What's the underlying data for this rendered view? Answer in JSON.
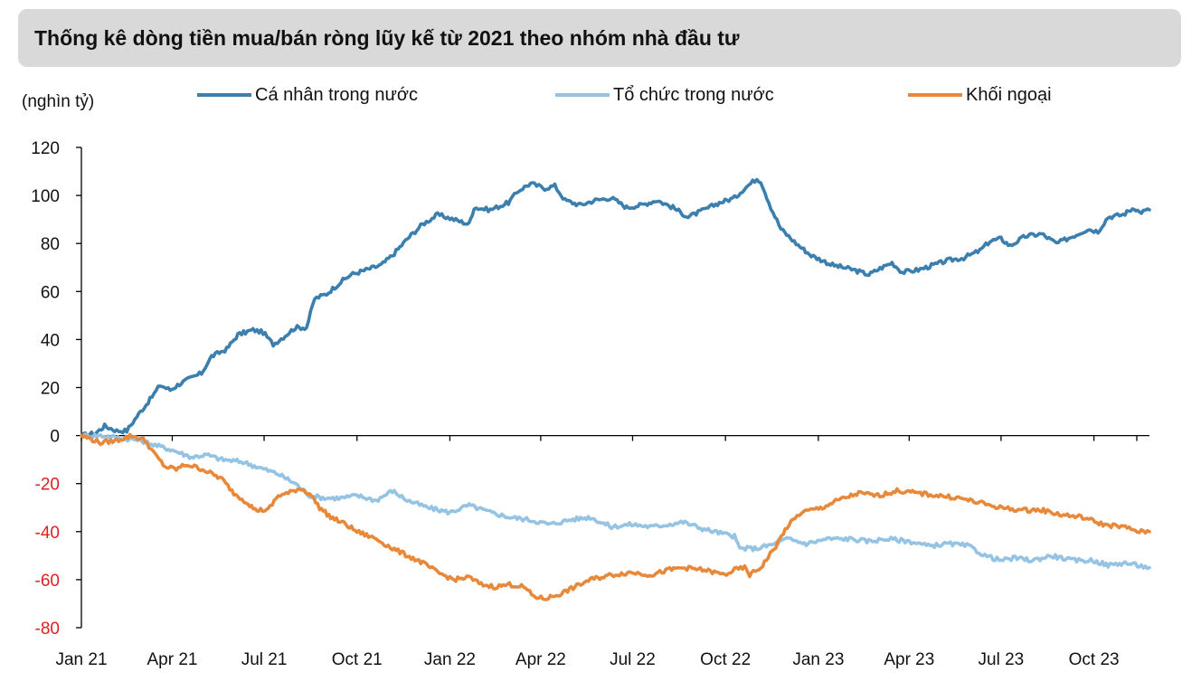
{
  "title": "Thống kê dòng tiền mua/bán ròng lũy kế từ 2021 theo nhóm nhà đầu tư",
  "unit_label": "(nghìn tỷ)",
  "colors": {
    "individual": "#3a7fad",
    "institution": "#95c3e3",
    "foreign": "#e8883a",
    "negative_tick": "#e02020",
    "axis": "#000000"
  },
  "chart_data": {
    "type": "line",
    "title": "Thống kê dòng tiền mua/bán ròng lũy kế từ 2021 theo nhóm nhà đầu tư",
    "ylabel": "(nghìn tỷ)",
    "xlabel": "",
    "ylim": [
      -80,
      120
    ],
    "yticks": [
      120,
      100,
      80,
      60,
      40,
      20,
      0,
      -20,
      -40,
      -60,
      -80
    ],
    "xlim": [
      "2021-01-01",
      "2023-11-25"
    ],
    "xticks": [
      {
        "date": "2021-01-01",
        "label": "Jan 21"
      },
      {
        "date": "2021-04-01",
        "label": "Apr 21"
      },
      {
        "date": "2021-07-01",
        "label": "Jul 21"
      },
      {
        "date": "2021-10-01",
        "label": "Oct 21"
      },
      {
        "date": "2022-01-01",
        "label": "Jan 22"
      },
      {
        "date": "2022-04-01",
        "label": "Apr 22"
      },
      {
        "date": "2022-07-01",
        "label": "Jul 22"
      },
      {
        "date": "2022-10-01",
        "label": "Oct 22"
      },
      {
        "date": "2023-01-01",
        "label": "Jan 23"
      },
      {
        "date": "2023-04-01",
        "label": "Apr 23"
      },
      {
        "date": "2023-07-01",
        "label": "Jul 23"
      },
      {
        "date": "2023-10-01",
        "label": "Oct 23"
      }
    ],
    "grid": false,
    "legend_position": "top",
    "series": [
      {
        "name": "Cá nhân trong nước",
        "color": "#3a7fad",
        "points": [
          [
            "2021-01-01",
            0
          ],
          [
            "2021-01-15",
            1
          ],
          [
            "2021-01-24",
            4
          ],
          [
            "2021-02-05",
            2
          ],
          [
            "2021-02-15",
            2
          ],
          [
            "2021-02-25",
            8
          ],
          [
            "2021-03-10",
            15
          ],
          [
            "2021-03-20",
            21
          ],
          [
            "2021-03-30",
            19
          ],
          [
            "2021-04-10",
            22
          ],
          [
            "2021-04-30",
            26
          ],
          [
            "2021-05-10",
            33
          ],
          [
            "2021-05-25",
            36
          ],
          [
            "2021-06-05",
            42
          ],
          [
            "2021-06-20",
            44
          ],
          [
            "2021-06-30",
            43
          ],
          [
            "2021-07-10",
            38
          ],
          [
            "2021-07-20",
            41
          ],
          [
            "2021-08-01",
            45
          ],
          [
            "2021-08-12",
            45
          ],
          [
            "2021-08-20",
            57
          ],
          [
            "2021-09-01",
            59
          ],
          [
            "2021-09-15",
            64
          ],
          [
            "2021-09-25",
            67
          ],
          [
            "2021-10-10",
            69
          ],
          [
            "2021-10-25",
            71
          ],
          [
            "2021-11-05",
            75
          ],
          [
            "2021-11-20",
            82
          ],
          [
            "2021-12-05",
            88
          ],
          [
            "2021-12-20",
            92
          ],
          [
            "2022-01-05",
            90
          ],
          [
            "2022-01-20",
            88
          ],
          [
            "2022-01-25",
            95
          ],
          [
            "2022-02-10",
            94
          ],
          [
            "2022-02-28",
            97
          ],
          [
            "2022-03-10",
            102
          ],
          [
            "2022-03-22",
            105
          ],
          [
            "2022-04-05",
            103
          ],
          [
            "2022-04-15",
            104
          ],
          [
            "2022-04-25",
            98
          ],
          [
            "2022-05-10",
            96
          ],
          [
            "2022-05-25",
            98
          ],
          [
            "2022-06-10",
            99
          ],
          [
            "2022-06-25",
            95
          ],
          [
            "2022-07-10",
            96
          ],
          [
            "2022-07-25",
            98
          ],
          [
            "2022-08-10",
            95
          ],
          [
            "2022-08-25",
            91
          ],
          [
            "2022-09-10",
            94
          ],
          [
            "2022-09-25",
            97
          ],
          [
            "2022-10-10",
            99
          ],
          [
            "2022-10-20",
            103
          ],
          [
            "2022-11-01",
            107
          ],
          [
            "2022-11-05",
            106
          ],
          [
            "2022-11-15",
            95
          ],
          [
            "2022-11-25",
            86
          ],
          [
            "2022-12-10",
            80
          ],
          [
            "2022-12-25",
            75
          ],
          [
            "2023-01-15",
            71
          ],
          [
            "2023-02-05",
            69
          ],
          [
            "2023-02-20",
            67
          ],
          [
            "2023-03-05",
            70
          ],
          [
            "2023-03-15",
            72
          ],
          [
            "2023-03-25",
            68
          ],
          [
            "2023-04-10",
            69
          ],
          [
            "2023-04-25",
            71
          ],
          [
            "2023-05-10",
            73
          ],
          [
            "2023-05-25",
            74
          ],
          [
            "2023-06-10",
            77
          ],
          [
            "2023-06-20",
            81
          ],
          [
            "2023-07-01",
            82
          ],
          [
            "2023-07-10",
            79
          ],
          [
            "2023-07-25",
            83
          ],
          [
            "2023-08-10",
            84
          ],
          [
            "2023-08-25",
            80
          ],
          [
            "2023-09-10",
            83
          ],
          [
            "2023-09-25",
            86
          ],
          [
            "2023-10-05",
            85
          ],
          [
            "2023-10-15",
            91
          ],
          [
            "2023-10-30",
            92
          ],
          [
            "2023-11-10",
            95
          ],
          [
            "2023-11-15",
            93
          ],
          [
            "2023-11-25",
            94
          ]
        ]
      },
      {
        "name": "Tổ chức trong nước",
        "color": "#95c3e3",
        "points": [
          [
            "2021-01-01",
            0
          ],
          [
            "2021-01-20",
            0
          ],
          [
            "2021-02-10",
            -1
          ],
          [
            "2021-02-28",
            -2
          ],
          [
            "2021-03-15",
            -4
          ],
          [
            "2021-04-01",
            -6
          ],
          [
            "2021-04-20",
            -9
          ],
          [
            "2021-05-05",
            -8
          ],
          [
            "2021-05-20",
            -10
          ],
          [
            "2021-06-10",
            -11
          ],
          [
            "2021-07-01",
            -14
          ],
          [
            "2021-07-15",
            -16
          ],
          [
            "2021-08-01",
            -20
          ],
          [
            "2021-08-15",
            -25
          ],
          [
            "2021-08-30",
            -26
          ],
          [
            "2021-09-15",
            -26
          ],
          [
            "2021-10-01",
            -25
          ],
          [
            "2021-10-20",
            -27
          ],
          [
            "2021-11-05",
            -23
          ],
          [
            "2021-11-20",
            -27
          ],
          [
            "2021-12-10",
            -30
          ],
          [
            "2022-01-01",
            -32
          ],
          [
            "2022-01-20",
            -29
          ],
          [
            "2022-02-10",
            -32
          ],
          [
            "2022-03-01",
            -34
          ],
          [
            "2022-03-20",
            -35
          ],
          [
            "2022-04-10",
            -37
          ],
          [
            "2022-05-01",
            -35
          ],
          [
            "2022-05-20",
            -34
          ],
          [
            "2022-06-10",
            -38
          ],
          [
            "2022-06-30",
            -37
          ],
          [
            "2022-07-20",
            -38
          ],
          [
            "2022-08-05",
            -37
          ],
          [
            "2022-08-20",
            -36
          ],
          [
            "2022-09-10",
            -39
          ],
          [
            "2022-09-30",
            -41
          ],
          [
            "2022-10-10",
            -42
          ],
          [
            "2022-10-15",
            -47
          ],
          [
            "2022-11-01",
            -47
          ],
          [
            "2022-11-20",
            -45
          ],
          [
            "2022-12-01",
            -43
          ],
          [
            "2022-12-20",
            -45
          ],
          [
            "2023-01-10",
            -43
          ],
          [
            "2023-02-01",
            -43
          ],
          [
            "2023-02-20",
            -44
          ],
          [
            "2023-03-10",
            -43
          ],
          [
            "2023-04-01",
            -44
          ],
          [
            "2023-04-20",
            -46
          ],
          [
            "2023-05-10",
            -45
          ],
          [
            "2023-05-30",
            -46
          ],
          [
            "2023-06-15",
            -50
          ],
          [
            "2023-07-01",
            -52
          ],
          [
            "2023-07-15",
            -51
          ],
          [
            "2023-08-01",
            -52
          ],
          [
            "2023-08-20",
            -50
          ],
          [
            "2023-09-10",
            -52
          ],
          [
            "2023-09-30",
            -52
          ],
          [
            "2023-10-15",
            -54
          ],
          [
            "2023-11-01",
            -53
          ],
          [
            "2023-11-25",
            -55
          ]
        ]
      },
      {
        "name": "Khối ngoại",
        "color": "#e8883a",
        "points": [
          [
            "2021-01-01",
            0
          ],
          [
            "2021-01-20",
            -3
          ],
          [
            "2021-02-05",
            -2
          ],
          [
            "2021-02-20",
            0
          ],
          [
            "2021-03-05",
            -2
          ],
          [
            "2021-03-15",
            -8
          ],
          [
            "2021-03-25",
            -13
          ],
          [
            "2021-04-05",
            -14
          ],
          [
            "2021-04-15",
            -12
          ],
          [
            "2021-05-01",
            -14
          ],
          [
            "2021-05-20",
            -18
          ],
          [
            "2021-06-01",
            -24
          ],
          [
            "2021-06-15",
            -28
          ],
          [
            "2021-06-22",
            -31
          ],
          [
            "2021-07-05",
            -31
          ],
          [
            "2021-07-15",
            -25
          ],
          [
            "2021-07-25",
            -24
          ],
          [
            "2021-08-05",
            -22
          ],
          [
            "2021-08-15",
            -24
          ],
          [
            "2021-08-25",
            -30
          ],
          [
            "2021-09-05",
            -34
          ],
          [
            "2021-09-20",
            -37
          ],
          [
            "2021-10-01",
            -40
          ],
          [
            "2021-10-20",
            -43
          ],
          [
            "2021-11-05",
            -47
          ],
          [
            "2021-11-20",
            -50
          ],
          [
            "2021-12-05",
            -53
          ],
          [
            "2021-12-20",
            -57
          ],
          [
            "2022-01-05",
            -60
          ],
          [
            "2022-01-20",
            -59
          ],
          [
            "2022-02-01",
            -62
          ],
          [
            "2022-02-15",
            -63
          ],
          [
            "2022-03-01",
            -62
          ],
          [
            "2022-03-15",
            -63
          ],
          [
            "2022-03-25",
            -67
          ],
          [
            "2022-04-05",
            -68
          ],
          [
            "2022-04-20",
            -66
          ],
          [
            "2022-05-05",
            -63
          ],
          [
            "2022-05-20",
            -60
          ],
          [
            "2022-06-10",
            -58
          ],
          [
            "2022-06-30",
            -57
          ],
          [
            "2022-07-20",
            -58
          ],
          [
            "2022-08-05",
            -56
          ],
          [
            "2022-08-20",
            -55
          ],
          [
            "2022-09-10",
            -56
          ],
          [
            "2022-09-30",
            -58
          ],
          [
            "2022-10-10",
            -56
          ],
          [
            "2022-10-20",
            -55
          ],
          [
            "2022-10-25",
            -58
          ],
          [
            "2022-11-05",
            -55
          ],
          [
            "2022-11-20",
            -46
          ],
          [
            "2022-12-01",
            -38
          ],
          [
            "2022-12-15",
            -32
          ],
          [
            "2023-01-05",
            -30
          ],
          [
            "2023-01-20",
            -27
          ],
          [
            "2023-02-10",
            -24
          ],
          [
            "2023-03-01",
            -25
          ],
          [
            "2023-03-20",
            -23
          ],
          [
            "2023-04-10",
            -24
          ],
          [
            "2023-04-30",
            -25
          ],
          [
            "2023-05-20",
            -26
          ],
          [
            "2023-06-10",
            -28
          ],
          [
            "2023-06-30",
            -30
          ],
          [
            "2023-07-20",
            -31
          ],
          [
            "2023-08-10",
            -31
          ],
          [
            "2023-08-30",
            -33
          ],
          [
            "2023-09-20",
            -34
          ],
          [
            "2023-10-10",
            -37
          ],
          [
            "2023-10-30",
            -38
          ],
          [
            "2023-11-15",
            -40
          ],
          [
            "2023-11-25",
            -40
          ]
        ]
      }
    ]
  }
}
